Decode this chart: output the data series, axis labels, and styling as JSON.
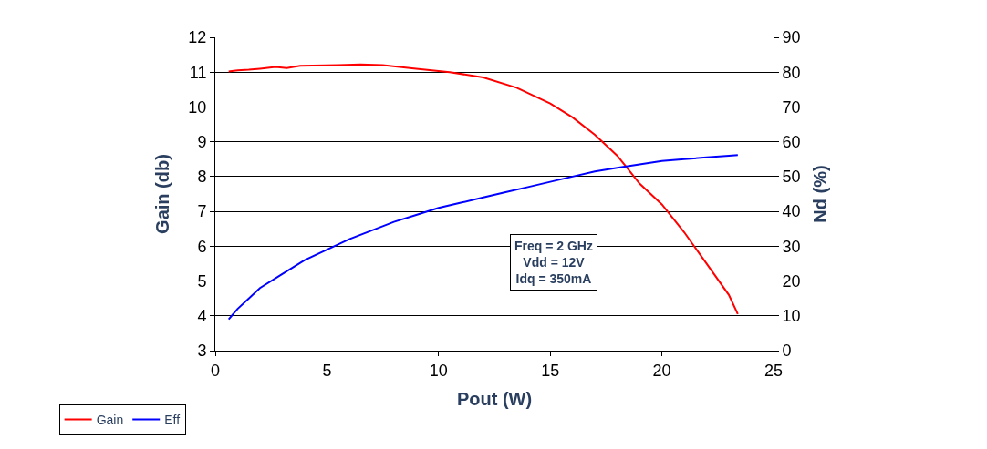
{
  "chart_data": {
    "type": "line",
    "xlabel": "Pout (W)",
    "ylabel": "Gain (db)",
    "y2label": "Nd (%)",
    "xlim": [
      0,
      25
    ],
    "xticks": [
      0,
      5,
      10,
      15,
      20,
      25
    ],
    "ylim": [
      3,
      12
    ],
    "yticks": [
      3,
      4,
      5,
      6,
      7,
      8,
      9,
      10,
      11,
      12
    ],
    "y2lim": [
      0,
      90
    ],
    "y2ticks": [
      0,
      10,
      20,
      30,
      40,
      50,
      60,
      70,
      80,
      90
    ],
    "grid": "y",
    "legend": "bottom left",
    "marker": "none",
    "line_style": "solid",
    "annotations": [
      "Freq = 2 GHz\nVdd = 12V\nIdq = 350mA"
    ],
    "series": [
      {
        "name": "Gain",
        "color": "#ff0000",
        "x": [
          0.6,
          1,
          1.5,
          2,
          2.7,
          3.2,
          3.8,
          5.5,
          6.5,
          7.5,
          9,
          10.5,
          12,
          13.5,
          15,
          16,
          17,
          18,
          18.5,
          19,
          20,
          21,
          22,
          23,
          23.4
        ],
        "values": [
          11.02,
          11.05,
          11.07,
          11.1,
          11.15,
          11.12,
          11.18,
          11.2,
          11.22,
          11.2,
          11.1,
          11.0,
          10.85,
          10.55,
          10.1,
          9.7,
          9.2,
          8.6,
          8.2,
          7.8,
          7.2,
          6.4,
          5.5,
          4.6,
          4.05
        ]
      },
      {
        "name": "Eff",
        "color": "#0000ff",
        "axis": "y2",
        "x": [
          0.6,
          1,
          1.5,
          2,
          3,
          4,
          5,
          6,
          7,
          8,
          9,
          10,
          11,
          12,
          13,
          14,
          15,
          16,
          17,
          18,
          19,
          20,
          21,
          22,
          23,
          23.4
        ],
        "values": [
          9,
          12,
          15,
          18,
          22,
          26,
          29,
          32,
          34.5,
          37,
          39,
          41,
          42.5,
          44,
          45.5,
          47,
          48.5,
          50,
          51.5,
          52.5,
          53.5,
          54.5,
          55,
          55.5,
          56,
          56.2
        ]
      }
    ]
  }
}
